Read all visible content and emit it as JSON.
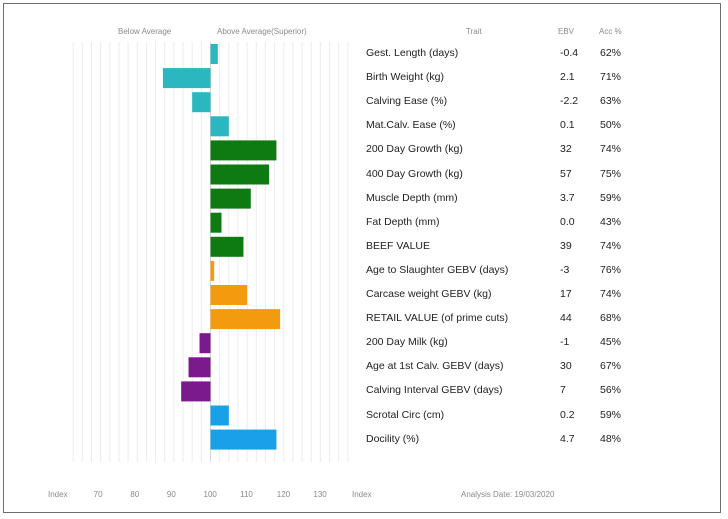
{
  "header": {
    "below": "Below Average",
    "above": "Above Average(Superior)",
    "trait": "Trait",
    "ebv": "EBV",
    "acc": "Acc %"
  },
  "footer": {
    "index_left": "Index",
    "index_right": "Index",
    "analysis_date": "Analysis Date: 19/03/2020"
  },
  "chart_data": {
    "type": "bar",
    "orientation": "horizontal",
    "xlim": [
      60,
      140
    ],
    "baseline": 100,
    "ticks": [
      "70",
      "80",
      "90",
      "100",
      "110",
      "120",
      "130"
    ],
    "grid": true,
    "colors": {
      "cyan": "#2ab7bf",
      "green": "#0e7a12",
      "orange": "#f39a0e",
      "purple": "#7a1a8c",
      "blue": "#19a0e6"
    },
    "rows": [
      {
        "trait": "Gest. Length (days)",
        "ebv": "-0.4",
        "acc": "62%",
        "index": 102,
        "color": "cyan"
      },
      {
        "trait": "Birth Weight (kg)",
        "ebv": "2.1",
        "acc": "71%",
        "index": 87,
        "color": "cyan"
      },
      {
        "trait": "Calving Ease (%)",
        "ebv": "-2.2",
        "acc": "63%",
        "index": 95,
        "color": "cyan"
      },
      {
        "trait": "Mat.Calv. Ease (%)",
        "ebv": "0.1",
        "acc": "50%",
        "index": 105,
        "color": "cyan"
      },
      {
        "trait": "200 Day Growth (kg)",
        "ebv": "32",
        "acc": "74%",
        "index": 118,
        "color": "green"
      },
      {
        "trait": "400 Day Growth (kg)",
        "ebv": "57",
        "acc": "75%",
        "index": 116,
        "color": "green"
      },
      {
        "trait": "Muscle Depth (mm)",
        "ebv": "3.7",
        "acc": "59%",
        "index": 111,
        "color": "green"
      },
      {
        "trait": "Fat Depth (mm)",
        "ebv": "0.0",
        "acc": "43%",
        "index": 103,
        "color": "green"
      },
      {
        "trait": "BEEF VALUE",
        "ebv": "39",
        "acc": "74%",
        "index": 109,
        "color": "green"
      },
      {
        "trait": "Age to Slaughter GEBV (days)",
        "ebv": "-3",
        "acc": "76%",
        "index": 101,
        "color": "orange"
      },
      {
        "trait": "Carcase weight GEBV (kg)",
        "ebv": "17",
        "acc": "74%",
        "index": 110,
        "color": "orange"
      },
      {
        "trait": "RETAIL VALUE (of prime cuts)",
        "ebv": "44",
        "acc": "68%",
        "index": 119,
        "color": "orange"
      },
      {
        "trait": "200 Day Milk (kg)",
        "ebv": "-1",
        "acc": "45%",
        "index": 97,
        "color": "purple"
      },
      {
        "trait": "Age at 1st Calv. GEBV (days)",
        "ebv": "30",
        "acc": "67%",
        "index": 94,
        "color": "purple"
      },
      {
        "trait": "Calving Interval GEBV (days)",
        "ebv": "7",
        "acc": "56%",
        "index": 92,
        "color": "purple"
      },
      {
        "trait": "Scrotal Circ (cm)",
        "ebv": "0.2",
        "acc": "59%",
        "index": 105,
        "color": "blue"
      },
      {
        "trait": "Docility (%)",
        "ebv": "4.7",
        "acc": "48%",
        "index": 118,
        "color": "blue"
      }
    ]
  }
}
